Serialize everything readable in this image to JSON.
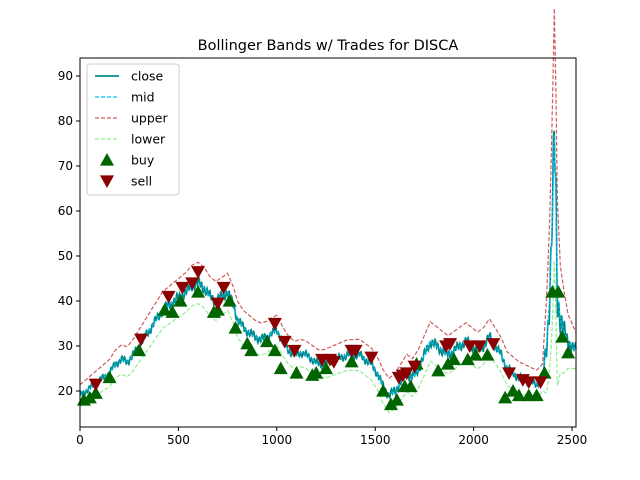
{
  "chart_data": {
    "type": "line",
    "title": "Bollinger Bands w/ Trades for DISCA",
    "xlabel": "",
    "ylabel": "",
    "xlim": [
      0,
      2520
    ],
    "ylim": [
      12,
      94
    ],
    "xticks": [
      0,
      500,
      1000,
      1500,
      2000,
      2500
    ],
    "yticks": [
      20,
      30,
      40,
      50,
      60,
      70,
      80,
      90
    ],
    "grid": false,
    "legend_position": "top-left",
    "close_path": [
      [
        0,
        19
      ],
      [
        30,
        20
      ],
      [
        60,
        21
      ],
      [
        90,
        22
      ],
      [
        120,
        23
      ],
      [
        150,
        24
      ],
      [
        180,
        26
      ],
      [
        210,
        27
      ],
      [
        240,
        26.5
      ],
      [
        270,
        28
      ],
      [
        300,
        30
      ],
      [
        330,
        32
      ],
      [
        360,
        34
      ],
      [
        390,
        36
      ],
      [
        420,
        38
      ],
      [
        450,
        39
      ],
      [
        480,
        40
      ],
      [
        510,
        41
      ],
      [
        540,
        42
      ],
      [
        570,
        43.5
      ],
      [
        600,
        44
      ],
      [
        630,
        43
      ],
      [
        660,
        41
      ],
      [
        690,
        40
      ],
      [
        720,
        41
      ],
      [
        750,
        42
      ],
      [
        780,
        39
      ],
      [
        800,
        36
      ],
      [
        830,
        34
      ],
      [
        860,
        33
      ],
      [
        890,
        32
      ],
      [
        920,
        31.5
      ],
      [
        950,
        32
      ],
      [
        980,
        33
      ],
      [
        1000,
        33.5
      ],
      [
        1030,
        31
      ],
      [
        1060,
        29
      ],
      [
        1090,
        28
      ],
      [
        1120,
        28.5
      ],
      [
        1150,
        28
      ],
      [
        1180,
        27
      ],
      [
        1210,
        26
      ],
      [
        1240,
        26
      ],
      [
        1270,
        26.5
      ],
      [
        1300,
        27
      ],
      [
        1330,
        27.5
      ],
      [
        1360,
        28
      ],
      [
        1390,
        28
      ],
      [
        1420,
        28
      ],
      [
        1450,
        27
      ],
      [
        1480,
        26
      ],
      [
        1510,
        24
      ],
      [
        1540,
        21
      ],
      [
        1570,
        19
      ],
      [
        1600,
        20
      ],
      [
        1630,
        22
      ],
      [
        1660,
        24
      ],
      [
        1690,
        23
      ],
      [
        1720,
        25
      ],
      [
        1750,
        28
      ],
      [
        1780,
        31
      ],
      [
        1810,
        30
      ],
      [
        1840,
        29
      ],
      [
        1870,
        28
      ],
      [
        1900,
        29
      ],
      [
        1930,
        30
      ],
      [
        1960,
        31
      ],
      [
        1990,
        30
      ],
      [
        2020,
        29
      ],
      [
        2050,
        30
      ],
      [
        2080,
        32
      ],
      [
        2110,
        30
      ],
      [
        2140,
        28
      ],
      [
        2170,
        25
      ],
      [
        2200,
        24
      ],
      [
        2230,
        23
      ],
      [
        2260,
        22.5
      ],
      [
        2290,
        22
      ],
      [
        2320,
        21.5
      ],
      [
        2350,
        23
      ],
      [
        2370,
        30
      ],
      [
        2385,
        40
      ],
      [
        2395,
        52
      ],
      [
        2403,
        64
      ],
      [
        2410,
        77
      ],
      [
        2418,
        62
      ],
      [
        2425,
        42
      ],
      [
        2440,
        36
      ],
      [
        2460,
        33
      ],
      [
        2480,
        31
      ],
      [
        2500,
        30
      ],
      [
        2520,
        29
      ]
    ],
    "band_half_width": [
      [
        0,
        1.2
      ],
      [
        400,
        2
      ],
      [
        600,
        2.3
      ],
      [
        800,
        2
      ],
      [
        1100,
        1.5
      ],
      [
        1500,
        1.8
      ],
      [
        1750,
        2.2
      ],
      [
        2100,
        2
      ],
      [
        2350,
        1.5
      ],
      [
        2385,
        8
      ],
      [
        2400,
        12
      ],
      [
        2410,
        14
      ],
      [
        2420,
        12
      ],
      [
        2440,
        6
      ],
      [
        2480,
        3
      ],
      [
        2520,
        2
      ]
    ],
    "buy_signals": [
      [
        20,
        18
      ],
      [
        50,
        18.5
      ],
      [
        80,
        19.5
      ],
      [
        150,
        23
      ],
      [
        300,
        29
      ],
      [
        430,
        38
      ],
      [
        470,
        37.5
      ],
      [
        510,
        40
      ],
      [
        600,
        42
      ],
      [
        680,
        37.5
      ],
      [
        700,
        38
      ],
      [
        760,
        40
      ],
      [
        790,
        34
      ],
      [
        850,
        30.5
      ],
      [
        870,
        29
      ],
      [
        950,
        31
      ],
      [
        990,
        29
      ],
      [
        1020,
        25
      ],
      [
        1100,
        24
      ],
      [
        1180,
        23.5
      ],
      [
        1200,
        24
      ],
      [
        1250,
        25
      ],
      [
        1380,
        26.5
      ],
      [
        1540,
        20
      ],
      [
        1580,
        17
      ],
      [
        1610,
        18
      ],
      [
        1650,
        21
      ],
      [
        1680,
        21
      ],
      [
        1710,
        26
      ],
      [
        1820,
        24.5
      ],
      [
        1870,
        26
      ],
      [
        1900,
        27
      ],
      [
        1970,
        27
      ],
      [
        2010,
        28
      ],
      [
        2070,
        28
      ],
      [
        2160,
        18.5
      ],
      [
        2200,
        20
      ],
      [
        2230,
        19
      ],
      [
        2280,
        19
      ],
      [
        2320,
        19
      ],
      [
        2360,
        24
      ],
      [
        2400,
        42
      ],
      [
        2430,
        42
      ],
      [
        2450,
        32
      ],
      [
        2480,
        28.5
      ]
    ],
    "sell_signals": [
      [
        80,
        21.5
      ],
      [
        310,
        31.5
      ],
      [
        450,
        41
      ],
      [
        520,
        43
      ],
      [
        570,
        44
      ],
      [
        600,
        46.5
      ],
      [
        700,
        39.5
      ],
      [
        730,
        43
      ],
      [
        990,
        35
      ],
      [
        1040,
        31
      ],
      [
        1090,
        29
      ],
      [
        1230,
        27
      ],
      [
        1270,
        27
      ],
      [
        1290,
        26.5
      ],
      [
        1380,
        29
      ],
      [
        1400,
        29
      ],
      [
        1480,
        27.5
      ],
      [
        1620,
        23
      ],
      [
        1640,
        23.5
      ],
      [
        1660,
        24
      ],
      [
        1700,
        25.5
      ],
      [
        1860,
        30
      ],
      [
        1880,
        30.5
      ],
      [
        1980,
        30
      ],
      [
        2030,
        30
      ],
      [
        2100,
        30.5
      ],
      [
        2180,
        24
      ],
      [
        2250,
        22.5
      ],
      [
        2280,
        22
      ],
      [
        2340,
        22
      ]
    ],
    "series": [
      {
        "name": "close",
        "color": "#008b8b",
        "style": "solid"
      },
      {
        "name": "mid",
        "color": "#00bfff",
        "style": "dashed"
      },
      {
        "name": "upper",
        "color": "#cd5c5c",
        "style": "dashed"
      },
      {
        "name": "lower",
        "color": "#90ee90",
        "style": "dashed"
      },
      {
        "name": "buy",
        "color": "#006400",
        "marker": "triangle-up"
      },
      {
        "name": "sell",
        "color": "#8b0000",
        "marker": "triangle-down"
      }
    ]
  }
}
